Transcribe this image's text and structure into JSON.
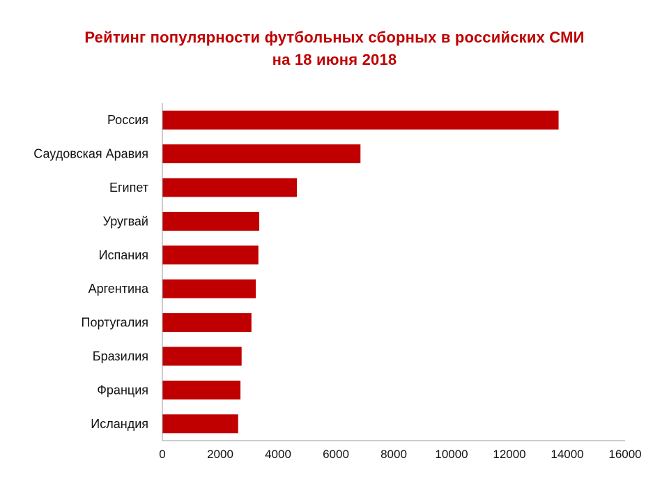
{
  "chart_data": {
    "type": "bar",
    "orientation": "horizontal",
    "title": "Рейтинг популярности футбольных сборных  в российских СМИ",
    "subtitle": "на 18 июня 2018",
    "categories": [
      "Россия",
      "Саудовская Аравия",
      "Египет",
      "Уругвай",
      "Испания",
      "Аргентина",
      "Португалия",
      "Бразилия",
      "Франция",
      "Исландия"
    ],
    "values": [
      13700,
      6850,
      4650,
      3350,
      3320,
      3230,
      3080,
      2740,
      2700,
      2620
    ],
    "xlim": [
      0,
      16000
    ],
    "xticks": [
      "0",
      "2000",
      "4000",
      "6000",
      "8000",
      "10000",
      "12000",
      "14000",
      "16000"
    ],
    "xlabel": "",
    "ylabel": "",
    "grid": false,
    "legend": "none",
    "bar_color": "#c00000"
  }
}
